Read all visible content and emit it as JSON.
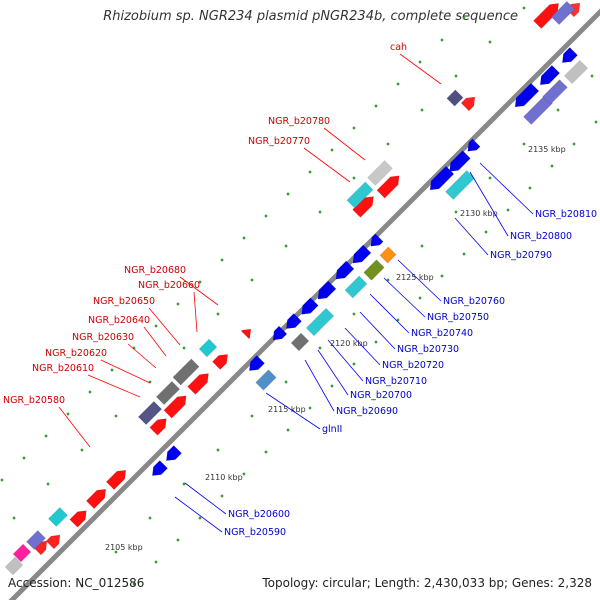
{
  "title": "Rhizobium sp. NGR234 plasmid pNGR234b, complete sequence",
  "footer": {
    "accession": "Accession: NC_012586",
    "topology": "Topology: circular; Length: 2,430,033 bp; Genes: 2,328"
  },
  "colors": {
    "forward": "#ff0000",
    "reverse": "#0000ff",
    "backbone": "#888888",
    "tick": "#2a9d2a"
  },
  "ruler": [
    "2105 kbp",
    "2110 kbp",
    "2115 kbp",
    "2120 kbp",
    "2125 kbp",
    "2130 kbp",
    "2135 kbp"
  ],
  "genes_forward": [
    "cah",
    "NGR_b20780",
    "NGR_b20770",
    "NGR_b20680",
    "NGR_b20660",
    "NGR_b20650",
    "NGR_b20640",
    "NGR_b20630",
    "NGR_b20620",
    "NGR_b20610",
    "NGR_b20580"
  ],
  "genes_reverse": [
    "NGR_b20810",
    "NGR_b20800",
    "NGR_b20790",
    "NGR_b20760",
    "NGR_b20750",
    "NGR_b20740",
    "NGR_b20730",
    "NGR_b20720",
    "NGR_b20710",
    "NGR_b20700",
    "NGR_b20690",
    "glnII",
    "NGR_b20600",
    "NGR_b20590"
  ]
}
